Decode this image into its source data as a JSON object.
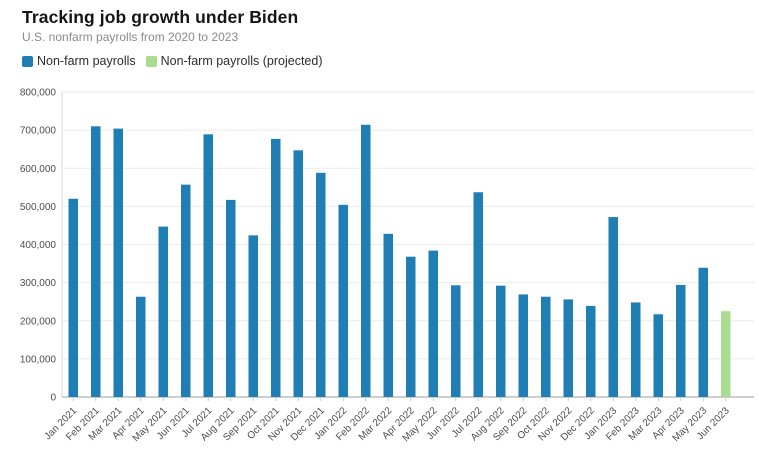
{
  "header": {
    "title": "Tracking job growth under Biden",
    "subtitle": "U.S. nonfarm payrolls from 2020 to 2023"
  },
  "legend": {
    "items": [
      {
        "label": "Non-farm payrolls",
        "color": "#1f7eb4",
        "swatch_icon": "square-swatch-icon"
      },
      {
        "label": "Non-farm payrolls (projected)",
        "color": "#a9dc8f",
        "swatch_icon": "square-swatch-icon"
      }
    ]
  },
  "chart_data": {
    "type": "bar",
    "title": "Tracking job growth under Biden",
    "subtitle": "U.S. nonfarm payrolls from 2020 to 2023",
    "categories": [
      "Jan 2021",
      "Feb 2021",
      "Mar 2021",
      "Apr 2021",
      "May 2021",
      "Jun 2021",
      "Jul 2021",
      "Aug 2021",
      "Sep 2021",
      "Oct 2021",
      "Nov 2021",
      "Dec 2021",
      "Jan 2022",
      "Feb 2022",
      "Mar 2022",
      "Apr 2022",
      "May 2022",
      "Jun 2022",
      "Jul 2022",
      "Aug 2022",
      "Sep 2022",
      "Oct 2022",
      "Nov 2022",
      "Dec 2022",
      "Jan 2023",
      "Feb 2023",
      "Mar 2023",
      "Apr 2023",
      "May 2023",
      "Jun 2023"
    ],
    "series": [
      {
        "name": "Non-farm payrolls",
        "color": "#1f7eb4",
        "values": [
          520000,
          710000,
          704000,
          263000,
          447000,
          557000,
          689000,
          517000,
          424000,
          677000,
          647000,
          588000,
          504000,
          714000,
          428000,
          368000,
          384000,
          293000,
          537000,
          292000,
          269000,
          263000,
          256000,
          239000,
          472000,
          248000,
          217000,
          294000,
          339000,
          null
        ]
      },
      {
        "name": "Non-farm payrolls (projected)",
        "color": "#a9dc8f",
        "values": [
          null,
          null,
          null,
          null,
          null,
          null,
          null,
          null,
          null,
          null,
          null,
          null,
          null,
          null,
          null,
          null,
          null,
          null,
          null,
          null,
          null,
          null,
          null,
          null,
          null,
          null,
          null,
          null,
          null,
          225000
        ]
      }
    ],
    "xlabel": "",
    "ylabel": "",
    "ylim": [
      0,
      800000
    ],
    "ytick_step": 100000,
    "ytick_labels": [
      "0",
      "100,000",
      "200,000",
      "300,000",
      "400,000",
      "500,000",
      "600,000",
      "700,000",
      "800,000"
    ],
    "grid": true,
    "legend_position": "top"
  },
  "colors": {
    "actual": "#1f7eb4",
    "projected": "#a9dc8f",
    "grid_line": "#ebebeb",
    "baseline": "#9c9c9c",
    "axis_line": "#d8d8d8",
    "tick": "#cccccc",
    "axis_text": "#4d4d4d",
    "title_text": "#151515",
    "subtitle_text": "#8b8b8b",
    "legend_text": "#2d2d2d",
    "background": "#ffffff"
  }
}
